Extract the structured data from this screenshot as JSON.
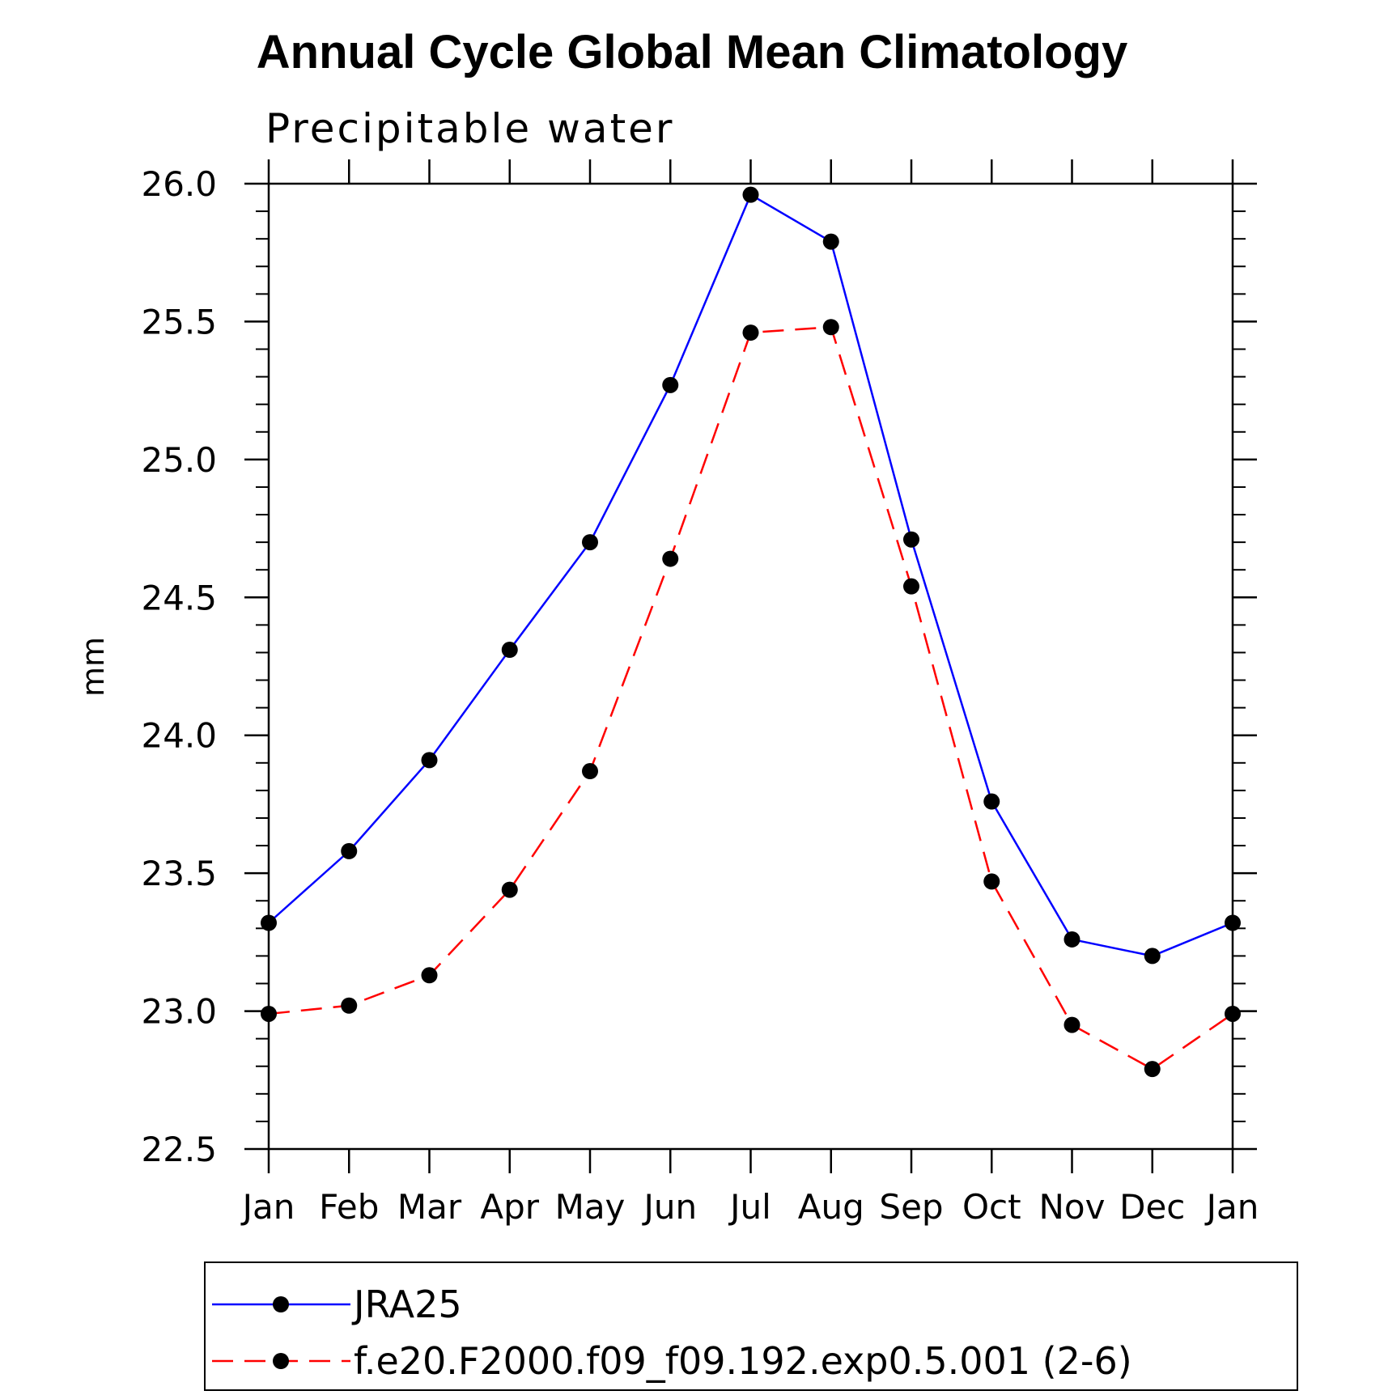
{
  "chart_data": {
    "type": "line",
    "title": "Annual Cycle Global Mean Climatology",
    "subtitle": "Precipitable water",
    "xlabel": "",
    "ylabel": "mm",
    "categories": [
      "Jan",
      "Feb",
      "Mar",
      "Apr",
      "May",
      "Jun",
      "Jul",
      "Aug",
      "Sep",
      "Oct",
      "Nov",
      "Dec",
      "Jan"
    ],
    "yticks": [
      "22.5",
      "23.0",
      "23.5",
      "24.0",
      "24.5",
      "25.0",
      "25.5",
      "26.0"
    ],
    "ylim": [
      22.5,
      26.0
    ],
    "grid": false,
    "legend_position": "bottom",
    "series": [
      {
        "name": "JRA25",
        "color": "#0000ff",
        "line_style": "solid",
        "marker": "filled-circle",
        "values": [
          23.32,
          23.58,
          23.91,
          24.31,
          24.7,
          25.27,
          25.96,
          25.79,
          24.71,
          23.76,
          23.26,
          23.2,
          23.32
        ]
      },
      {
        "name": "f.e20.F2000.f09_f09.192.exp0.5.001 (2-6)",
        "color": "#ff0000",
        "line_style": "dashed",
        "marker": "filled-circle",
        "values": [
          22.99,
          23.02,
          23.13,
          23.44,
          23.87,
          24.64,
          25.46,
          25.48,
          24.54,
          23.47,
          22.95,
          22.79,
          22.99
        ]
      }
    ]
  }
}
